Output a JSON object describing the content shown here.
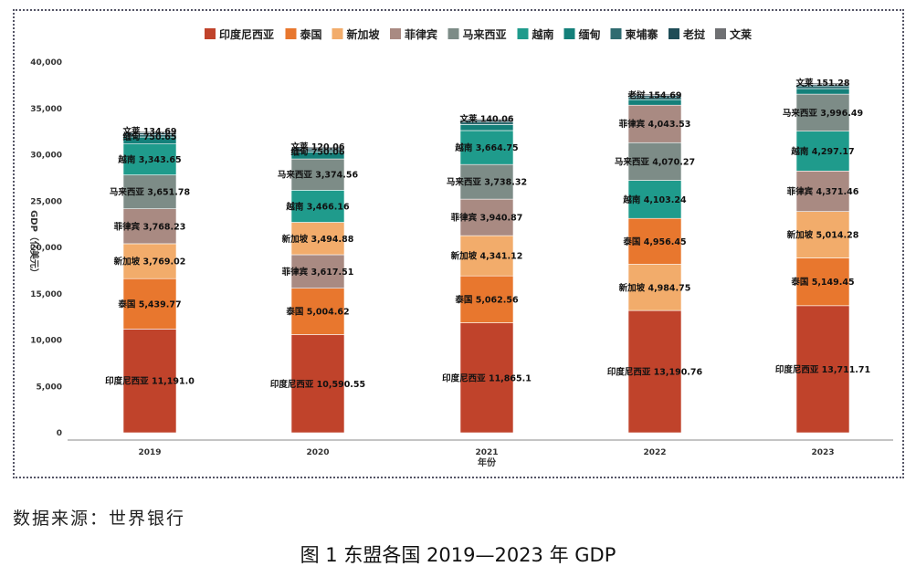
{
  "caption": "图 1 东盟各国 2019—2023 年 GDP",
  "source": "数据来源：世界银行",
  "colors": {
    "印度尼西亚": "#c0432b",
    "泰国": "#e8772e",
    "新加坡": "#f2ac6b",
    "菲律宾": "#a98a82",
    "马来西亚": "#7d8c87",
    "越南": "#1f9b8c",
    "缅甸": "#14807a",
    "柬埔寨": "#2f6b70",
    "老挝": "#1e4d57",
    "文莱": "#6f7073"
  },
  "chart_data": {
    "type": "bar",
    "stacked": true,
    "xlabel": "年份",
    "ylabel": "GDP（亿美元）",
    "ylim": [
      0,
      40000
    ],
    "yticks": [
      "0",
      "5,000",
      "10,000",
      "15,000",
      "20,000",
      "25,000",
      "30,000",
      "35,000",
      "40,000"
    ],
    "legend_position": "top",
    "legend": [
      "印度尼西亚",
      "泰国",
      "新加坡",
      "菲律宾",
      "马来西亚",
      "越南",
      "缅甸",
      "柬埔寨",
      "老挝",
      "文莱"
    ],
    "categories": [
      "2019",
      "2020",
      "2021",
      "2022",
      "2023"
    ],
    "bars": [
      {
        "year": "2019",
        "segments": [
          {
            "country": "印度尼西亚",
            "value": 11191.0,
            "label": "印度尼西亚 11,191.0"
          },
          {
            "country": "泰国",
            "value": 5439.77,
            "label": "泰国 5,439.77"
          },
          {
            "country": "新加坡",
            "value": 3769.02,
            "label": "新加坡 3,769.02"
          },
          {
            "country": "菲律宾",
            "value": 3768.23,
            "label": "菲律宾 3,768.23"
          },
          {
            "country": "马来西亚",
            "value": 3651.78,
            "label": "马来西亚 3,651.78"
          },
          {
            "country": "越南",
            "value": 3343.65,
            "label": "越南 3,343.65"
          },
          {
            "country": "缅甸",
            "value": 750.65,
            "label": "缅甸 750.65"
          },
          {
            "country": "柬埔寨",
            "value": 270,
            "label": ""
          },
          {
            "country": "老挝",
            "value": 190,
            "label": ""
          },
          {
            "country": "文莱",
            "value": 134.69,
            "label": "文莱 134.69"
          }
        ]
      },
      {
        "year": "2020",
        "segments": [
          {
            "country": "印度尼西亚",
            "value": 10590.55,
            "label": "印度尼西亚 10,590.55"
          },
          {
            "country": "泰国",
            "value": 5004.62,
            "label": "泰国 5,004.62"
          },
          {
            "country": "菲律宾",
            "value": 3617.51,
            "label": "菲律宾 3,617.51"
          },
          {
            "country": "新加坡",
            "value": 3494.88,
            "label": "新加坡 3,494.88"
          },
          {
            "country": "越南",
            "value": 3466.16,
            "label": "越南 3,466.16"
          },
          {
            "country": "马来西亚",
            "value": 3374.56,
            "label": "马来西亚 3,374.56"
          },
          {
            "country": "缅甸",
            "value": 750.06,
            "label": "缅甸 750.06"
          },
          {
            "country": "柬埔寨",
            "value": 250,
            "label": ""
          },
          {
            "country": "老挝",
            "value": 190,
            "label": ""
          },
          {
            "country": "文莱",
            "value": 120.06,
            "label": "文莱 120.06"
          }
        ]
      },
      {
        "year": "2021",
        "segments": [
          {
            "country": "印度尼西亚",
            "value": 11865.1,
            "label": "印度尼西亚 11,865.1"
          },
          {
            "country": "泰国",
            "value": 5062.56,
            "label": "泰国 5,062.56"
          },
          {
            "country": "新加坡",
            "value": 4341.12,
            "label": "新加坡 4,341.12"
          },
          {
            "country": "菲律宾",
            "value": 3940.87,
            "label": "菲律宾 3,940.87"
          },
          {
            "country": "马来西亚",
            "value": 3738.32,
            "label": "马来西亚 3,738.32"
          },
          {
            "country": "越南",
            "value": 3664.75,
            "label": "越南 3,664.75"
          },
          {
            "country": "缅甸",
            "value": 650,
            "label": ""
          },
          {
            "country": "柬埔寨",
            "value": 270,
            "label": ""
          },
          {
            "country": "老挝",
            "value": 190,
            "label": ""
          },
          {
            "country": "文莱",
            "value": 140.06,
            "label": "文莱 140.06"
          }
        ]
      },
      {
        "year": "2022",
        "segments": [
          {
            "country": "印度尼西亚",
            "value": 13190.76,
            "label": "印度尼西亚 13,190.76"
          },
          {
            "country": "新加坡",
            "value": 4984.75,
            "label": "新加坡 4,984.75"
          },
          {
            "country": "泰国",
            "value": 4956.45,
            "label": "泰国 4,956.45"
          },
          {
            "country": "越南",
            "value": 4103.24,
            "label": "越南 4,103.24"
          },
          {
            "country": "马来西亚",
            "value": 4070.27,
            "label": "马来西亚 4,070.27"
          },
          {
            "country": "菲律宾",
            "value": 4043.53,
            "label": "菲律宾 4,043.53"
          },
          {
            "country": "缅甸",
            "value": 600,
            "label": ""
          },
          {
            "country": "柬埔寨",
            "value": 290,
            "label": ""
          },
          {
            "country": "老挝",
            "value": 154.69,
            "label": "老挝 154.69"
          },
          {
            "country": "文莱",
            "value": 160,
            "label": ""
          }
        ]
      },
      {
        "year": "2023",
        "segments": [
          {
            "country": "印度尼西亚",
            "value": 13711.71,
            "label": "印度尼西亚 13,711.71"
          },
          {
            "country": "泰国",
            "value": 5149.45,
            "label": "泰国 5,149.45"
          },
          {
            "country": "新加坡",
            "value": 5014.28,
            "label": "新加坡 5,014.28"
          },
          {
            "country": "菲律宾",
            "value": 4371.46,
            "label": "菲律宾 4,371.46"
          },
          {
            "country": "越南",
            "value": 4297.17,
            "label": "越南 4,297.17"
          },
          {
            "country": "马来西亚",
            "value": 3996.49,
            "label": "马来西亚 3,996.49"
          },
          {
            "country": "缅甸",
            "value": 600,
            "label": ""
          },
          {
            "country": "柬埔寨",
            "value": 300,
            "label": ""
          },
          {
            "country": "老挝",
            "value": 150,
            "label": ""
          },
          {
            "country": "文莱",
            "value": 151.28,
            "label": "文莱 151.28"
          }
        ]
      }
    ]
  }
}
